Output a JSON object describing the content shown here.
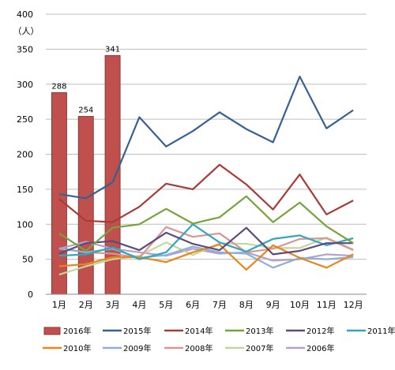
{
  "chart_data": {
    "type": "bar+line",
    "unit_label": "（人）",
    "ylim": [
      0,
      400
    ],
    "yticks": [
      0,
      50,
      100,
      150,
      200,
      250,
      300,
      350,
      400
    ],
    "grid": true,
    "legend_position": "bottom",
    "categories": [
      "1月",
      "2月",
      "3月",
      "4月",
      "5月",
      "6月",
      "7月",
      "8月",
      "9月",
      "10月",
      "11月",
      "12月"
    ],
    "bar_series": {
      "name": "2016年",
      "color": "#c0504d",
      "values": [
        288,
        254,
        341
      ],
      "labels": [
        "288",
        "254",
        "341"
      ]
    },
    "series": [
      {
        "name": "2015年",
        "color": "#376092",
        "values": [
          143,
          137,
          160,
          253,
          211,
          233,
          260,
          236,
          217,
          311,
          237,
          263
        ]
      },
      {
        "name": "2014年",
        "color": "#a93a36",
        "values": [
          136,
          105,
          103,
          125,
          158,
          150,
          185,
          157,
          121,
          171,
          114,
          134
        ]
      },
      {
        "name": "2013年",
        "color": "#77a33b",
        "values": [
          87,
          62,
          95,
          100,
          122,
          101,
          110,
          140,
          103,
          131,
          97,
          73
        ]
      },
      {
        "name": "2012年",
        "color": "#5f4a7e",
        "values": [
          58,
          73,
          76,
          63,
          88,
          72,
          63,
          95,
          57,
          62,
          73,
          73
        ]
      },
      {
        "name": "2011年",
        "color": "#2fa7be",
        "values": [
          55,
          57,
          67,
          50,
          60,
          100,
          74,
          61,
          79,
          84,
          70,
          80
        ]
      },
      {
        "name": "2010年",
        "color": "#e8861a",
        "values": [
          40,
          43,
          53,
          53,
          46,
          60,
          71,
          35,
          70,
          52,
          38,
          57
        ]
      },
      {
        "name": "2009年",
        "color": "#8eaed9",
        "values": [
          66,
          60,
          65,
          52,
          56,
          68,
          60,
          58,
          38,
          52,
          50,
          53
        ]
      },
      {
        "name": "2008年",
        "color": "#d99694",
        "values": [
          65,
          60,
          58,
          52,
          96,
          82,
          87,
          60,
          65,
          79,
          80,
          63
        ]
      },
      {
        "name": "2007年",
        "color": "#c3d69b",
        "values": [
          28,
          40,
          50,
          55,
          74,
          56,
          73,
          72,
          66,
          66,
          81,
          64
        ]
      },
      {
        "name": "2006年",
        "color": "#b3a2c7",
        "values": [
          65,
          75,
          65,
          60,
          55,
          65,
          58,
          60,
          48,
          50,
          57,
          55
        ]
      }
    ]
  }
}
